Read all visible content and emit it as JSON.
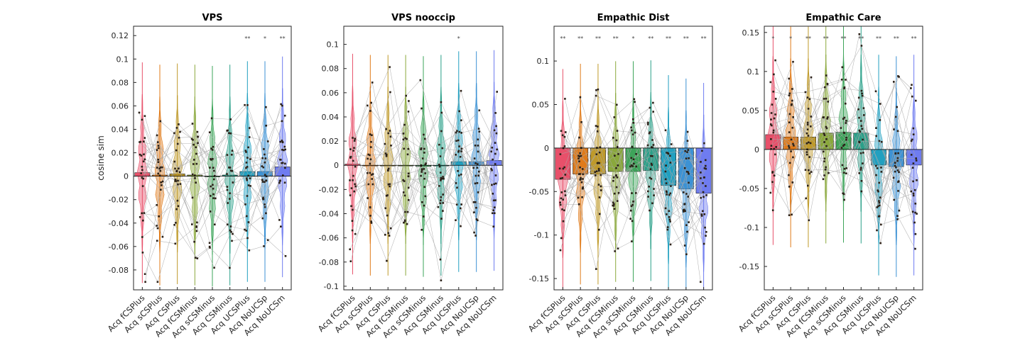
{
  "chart_data": [
    {
      "type": "bar",
      "title": "VPS",
      "ylabel": "cosine sim",
      "categories": [
        "Acq fCSPlus",
        "Acq sCSPlus",
        "Acq CSPlus",
        "Acq fCSMinus",
        "Acq sCSMinus",
        "Acq CSMinus",
        "Acq UCSPlus",
        "Acq NoUCSp",
        "Acq NoUCSm"
      ],
      "values": [
        0.003,
        0.001,
        0.002,
        0.001,
        0.0,
        0.001,
        0.004,
        0.004,
        0.008
      ],
      "ylim": [
        -0.097,
        0.128
      ],
      "yticks": [
        -0.08,
        -0.06,
        -0.04,
        -0.02,
        0,
        0.02,
        0.04,
        0.06,
        0.08,
        0.1,
        0.12
      ],
      "ytick_labels": [
        "-0.08",
        "-0.06",
        "-0.04",
        "-0.02",
        "0",
        "0.02",
        "0.04",
        "0.06",
        "0.08",
        "0.1",
        "0.12"
      ],
      "sig_markers": [
        "",
        "",
        "",
        "",
        "",
        "",
        "**",
        "*",
        "**"
      ]
    },
    {
      "type": "bar",
      "title": "VPS nooccip",
      "ylabel": "",
      "categories": [
        "Acq fCSPlus",
        "Acq sCSPlus",
        "Acq CSPlus",
        "Acq fCSMinus",
        "Acq sCSMinus",
        "Acq CSMinus",
        "Acq UCSPlus",
        "Acq NoUCSp",
        "Acq NoUCSm"
      ],
      "values": [
        0.001,
        0.0,
        0.0,
        0.0,
        -0.001,
        0.0,
        0.003,
        0.003,
        0.004
      ],
      "ylim": [
        -0.103,
        0.115
      ],
      "yticks": [
        -0.1,
        -0.08,
        -0.06,
        -0.04,
        -0.02,
        0,
        0.02,
        0.04,
        0.06,
        0.08,
        0.1
      ],
      "ytick_labels": [
        "-0.1",
        "-0.08",
        "-0.06",
        "-0.04",
        "-0.02",
        "0",
        "0.02",
        "0.04",
        "0.06",
        "0.08",
        "0.1"
      ],
      "sig_markers": [
        "",
        "",
        "",
        "",
        "",
        "",
        "*",
        "",
        ""
      ]
    },
    {
      "type": "bar",
      "title": "Empathic Dist",
      "ylabel": "",
      "categories": [
        "Acq fCSPlus",
        "Acq sCSPlus",
        "Acq CSPlus",
        "Acq fCSMinus",
        "Acq sCSMinus",
        "Acq CSMinus",
        "Acq UCSPlus",
        "Acq NoUCSp",
        "Acq NoUCSm"
      ],
      "values": [
        -0.036,
        -0.03,
        -0.03,
        -0.027,
        -0.027,
        -0.026,
        -0.043,
        -0.047,
        -0.052
      ],
      "ylim": [
        -0.163,
        0.14
      ],
      "yticks": [
        -0.15,
        -0.1,
        -0.05,
        0,
        0.05,
        0.1
      ],
      "ytick_labels": [
        "-0.15",
        "-0.1",
        "-0.05",
        "0",
        "0.05",
        "0.1"
      ],
      "sig_markers": [
        "**",
        "**",
        "**",
        "**",
        "*",
        "**",
        "**",
        "**",
        "**"
      ]
    },
    {
      "type": "bar",
      "title": "Empathic Care",
      "ylabel": "",
      "categories": [
        "Acq fCSPlus",
        "Acq sCSPlus",
        "Acq CSPlus",
        "Acq fCSMinus",
        "Acq sCSMinus",
        "Acq CSMinus",
        "Acq UCSPlus",
        "Acq NoUCSp",
        "Acq NoUCSm"
      ],
      "values": [
        0.019,
        0.016,
        0.016,
        0.021,
        0.022,
        0.021,
        -0.02,
        -0.022,
        -0.02
      ],
      "ylim": [
        -0.18,
        0.158
      ],
      "yticks": [
        -0.15,
        -0.1,
        -0.05,
        0,
        0.05,
        0.1,
        0.15
      ],
      "ytick_labels": [
        "-0.15",
        "-0.1",
        "-0.05",
        "0",
        "0.05",
        "0.1",
        "0.15"
      ],
      "sig_markers": [
        "*",
        "*",
        "**",
        "**",
        "**",
        "**",
        "**",
        "**",
        "**"
      ]
    }
  ],
  "colors": {
    "series": [
      "#e8506a",
      "#e07b1a",
      "#bf9a2a",
      "#8aa83c",
      "#3ea55a",
      "#2aa089",
      "#22a0c0",
      "#3d92d4",
      "#6f7cf0"
    ],
    "points": "#2b2118",
    "lines": "#a8a8a8",
    "axis": "#262626"
  }
}
